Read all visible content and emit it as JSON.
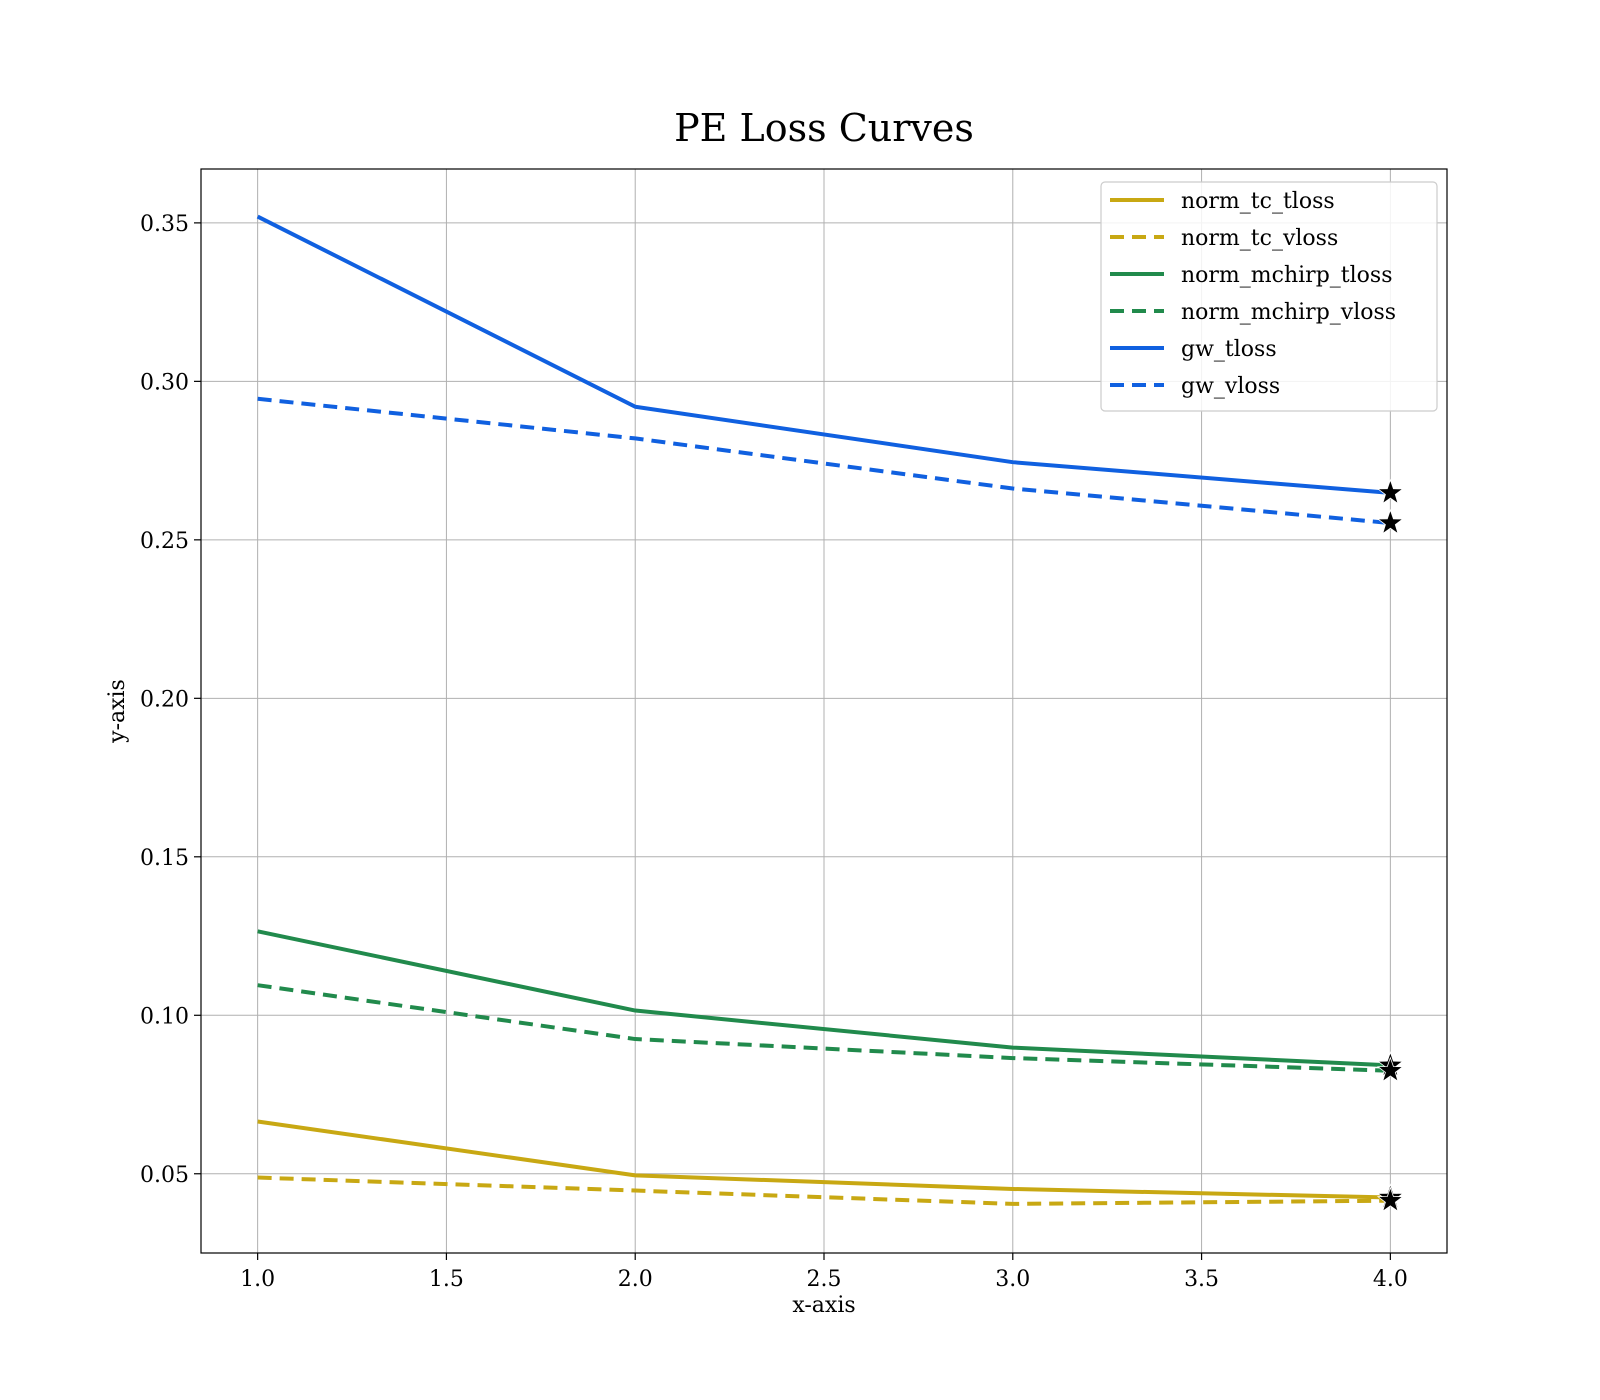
{
  "chart_data": {
    "type": "line",
    "title": "PE Loss Curves",
    "xlabel": "x-axis",
    "ylabel": "y-axis",
    "xlim": [
      0.85,
      4.15
    ],
    "ylim": [
      0.025,
      0.367
    ],
    "xticks": [
      "1.0",
      "1.5",
      "2.0",
      "2.5",
      "3.0",
      "3.5",
      "4.0"
    ],
    "yticks": [
      "0.05",
      "0.10",
      "0.15",
      "0.20",
      "0.25",
      "0.30",
      "0.35"
    ],
    "grid": true,
    "legend_position": "top-right",
    "x": [
      1,
      2,
      3,
      4
    ],
    "series": [
      {
        "name": "norm_tc_tloss",
        "values": [
          0.0665,
          0.0495,
          0.0452,
          0.0425
        ],
        "color": "#c8a813",
        "style": "solid"
      },
      {
        "name": "norm_tc_vloss",
        "values": [
          0.0488,
          0.0447,
          0.0405,
          0.0415
        ],
        "color": "#c8a813",
        "style": "dashed"
      },
      {
        "name": "norm_mchirp_tloss",
        "values": [
          0.1265,
          0.1015,
          0.0898,
          0.0842
        ],
        "color": "#218a4c",
        "style": "solid"
      },
      {
        "name": "norm_mchirp_vloss",
        "values": [
          0.1095,
          0.0925,
          0.0865,
          0.0825
        ],
        "color": "#218a4c",
        "style": "dashed"
      },
      {
        "name": "gw_tloss",
        "values": [
          0.352,
          0.292,
          0.2745,
          0.2648
        ],
        "color": "#1060e0",
        "style": "solid"
      },
      {
        "name": "gw_vloss",
        "values": [
          0.2945,
          0.282,
          0.2662,
          0.2553
        ],
        "color": "#1060e0",
        "style": "dashed"
      }
    ],
    "markers": {
      "symbol": "star",
      "color": "#000000",
      "note_index": 3
    }
  }
}
